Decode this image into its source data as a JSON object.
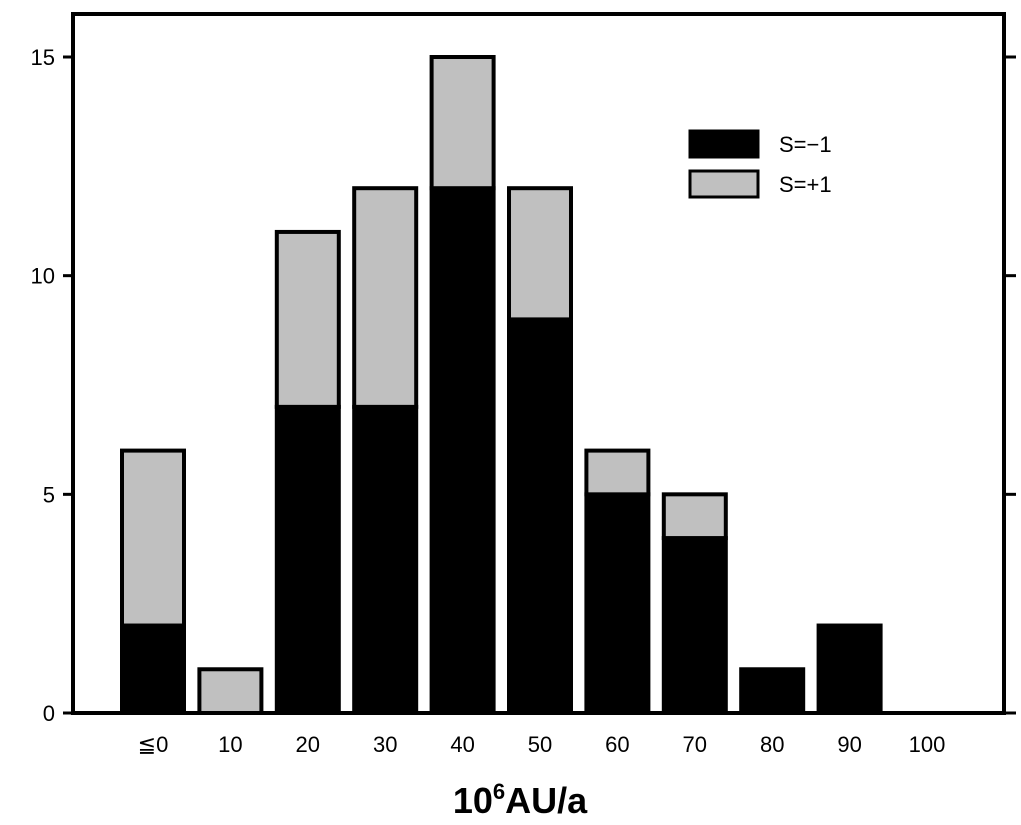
{
  "chart_data": {
    "type": "bar",
    "stacked": true,
    "categories": [
      "≦0",
      "10",
      "20",
      "30",
      "40",
      "50",
      "60",
      "70",
      "80",
      "90",
      "100"
    ],
    "series": [
      {
        "name": "S=−1",
        "values": [
          2,
          0,
          7,
          7,
          12,
          9,
          5,
          4,
          1,
          2,
          0
        ],
        "color": "#000000"
      },
      {
        "name": "S=+1",
        "values": [
          4,
          1,
          4,
          5,
          3,
          3,
          1,
          1,
          0,
          0,
          0
        ],
        "color": "#c0c0c0"
      }
    ],
    "xlabel": {
      "base": "10",
      "superscript": "6",
      "rest": "AU/a"
    },
    "ylabel": "",
    "ylim": [
      0,
      15
    ],
    "yticks": [
      0,
      5,
      10,
      15
    ],
    "grid": false,
    "legend_position": "top-right"
  }
}
